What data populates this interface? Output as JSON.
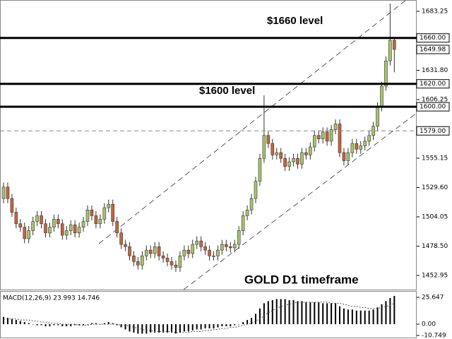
{
  "chart_data": [
    {
      "type": "candlestick",
      "annotations": [
        "$1660 level",
        "$1600 level",
        "GOLD D1 timeframe"
      ],
      "up_color": "#a8c46a",
      "down_color": "#c8643c",
      "open": [
        1520,
        1530,
        1520,
        1508,
        1498,
        1495,
        1485,
        1492,
        1500,
        1505,
        1498,
        1490,
        1495,
        1502,
        1498,
        1488,
        1492,
        1497,
        1490,
        1495,
        1500,
        1510,
        1505,
        1498,
        1502,
        1512,
        1515,
        1500,
        1490,
        1480,
        1478,
        1470,
        1465,
        1462,
        1470,
        1475,
        1472,
        1478,
        1470,
        1468,
        1465,
        1462,
        1460,
        1470,
        1475,
        1472,
        1480,
        1483,
        1478,
        1475,
        1470,
        1470,
        1475,
        1480,
        1478,
        1477,
        1480,
        1492,
        1505,
        1510,
        1520,
        1535,
        1555,
        1575,
        1568,
        1558,
        1560,
        1555,
        1548,
        1552,
        1555,
        1550,
        1560,
        1558,
        1565,
        1575,
        1572,
        1578,
        1570,
        1580,
        1585,
        1560,
        1553,
        1560,
        1568,
        1563,
        1566,
        1570,
        1575,
        1583,
        1600,
        1618,
        1640,
        1658
      ],
      "high": [
        1534,
        1534,
        1524,
        1512,
        1502,
        1499,
        1496,
        1504,
        1509,
        1509,
        1502,
        1499,
        1506,
        1506,
        1502,
        1496,
        1501,
        1501,
        1499,
        1504,
        1514,
        1514,
        1509,
        1506,
        1516,
        1519,
        1519,
        1504,
        1494,
        1484,
        1482,
        1474,
        1469,
        1474,
        1479,
        1479,
        1482,
        1482,
        1474,
        1472,
        1469,
        1466,
        1474,
        1479,
        1479,
        1484,
        1487,
        1487,
        1482,
        1479,
        1474,
        1479,
        1484,
        1484,
        1482,
        1484,
        1496,
        1509,
        1514,
        1524,
        1539,
        1559,
        1610,
        1579,
        1572,
        1564,
        1564,
        1559,
        1556,
        1559,
        1559,
        1564,
        1564,
        1569,
        1579,
        1579,
        1582,
        1582,
        1584,
        1589,
        1589,
        1564,
        1564,
        1572,
        1572,
        1570,
        1574,
        1579,
        1587,
        1604,
        1622,
        1644,
        1690,
        1660
      ],
      "low": [
        1516,
        1516,
        1504,
        1494,
        1491,
        1481,
        1481,
        1488,
        1496,
        1494,
        1486,
        1486,
        1491,
        1494,
        1484,
        1484,
        1488,
        1486,
        1486,
        1491,
        1496,
        1501,
        1494,
        1494,
        1498,
        1508,
        1496,
        1486,
        1476,
        1474,
        1466,
        1461,
        1458,
        1458,
        1466,
        1468,
        1468,
        1466,
        1464,
        1461,
        1458,
        1456,
        1456,
        1466,
        1468,
        1468,
        1476,
        1474,
        1471,
        1466,
        1466,
        1466,
        1471,
        1474,
        1473,
        1473,
        1476,
        1488,
        1501,
        1506,
        1516,
        1531,
        1551,
        1564,
        1554,
        1554,
        1551,
        1544,
        1544,
        1548,
        1546,
        1546,
        1554,
        1554,
        1561,
        1568,
        1568,
        1566,
        1566,
        1576,
        1556,
        1549,
        1549,
        1556,
        1559,
        1559,
        1562,
        1566,
        1571,
        1579,
        1596,
        1614,
        1636,
        1630
      ],
      "close": [
        1530,
        1520,
        1508,
        1498,
        1495,
        1485,
        1492,
        1500,
        1505,
        1498,
        1490,
        1495,
        1502,
        1498,
        1488,
        1492,
        1497,
        1490,
        1495,
        1500,
        1510,
        1505,
        1498,
        1502,
        1512,
        1515,
        1500,
        1490,
        1480,
        1478,
        1470,
        1465,
        1462,
        1470,
        1475,
        1472,
        1478,
        1470,
        1468,
        1465,
        1462,
        1460,
        1470,
        1475,
        1472,
        1480,
        1483,
        1478,
        1475,
        1470,
        1470,
        1475,
        1480,
        1478,
        1477,
        1480,
        1492,
        1505,
        1510,
        1520,
        1535,
        1555,
        1575,
        1568,
        1558,
        1560,
        1555,
        1548,
        1552,
        1555,
        1550,
        1560,
        1558,
        1565,
        1575,
        1572,
        1578,
        1570,
        1580,
        1585,
        1560,
        1553,
        1560,
        1568,
        1563,
        1566,
        1570,
        1575,
        1583,
        1600,
        1618,
        1640,
        1658,
        1650
      ],
      "ylim": [
        1440.6,
        1693.1
      ],
      "yticks": [
        {
          "value": 1683.25,
          "label": "1683.25"
        },
        {
          "value": 1631.8,
          "label": "1631.80"
        },
        {
          "value": 1606.25,
          "label": "1606.25"
        },
        {
          "value": 1555.15,
          "label": "1555.15"
        },
        {
          "value": 1529.6,
          "label": "1529.60"
        },
        {
          "value": 1504.05,
          "label": "1504.05"
        },
        {
          "value": 1478.5,
          "label": "1478.50"
        },
        {
          "value": 1452.95,
          "label": "1452.95"
        }
      ],
      "levels": [
        {
          "value": 1660,
          "label": "1660.00",
          "style": "solid"
        },
        {
          "value": 1620,
          "label": "1620.00",
          "style": "solid"
        },
        {
          "value": 1600,
          "label": "1600.00",
          "style": "solid"
        },
        {
          "value": 1579,
          "label": "1579.00",
          "style": "dashed"
        }
      ],
      "price_label": {
        "value": 1649.98,
        "label": "1649.98"
      }
    },
    {
      "type": "macd",
      "title": "MACD(12,26,9) 23.993 14.746",
      "color": "#000000",
      "values": [
        7,
        6,
        5,
        4,
        3,
        2,
        1,
        0,
        -1,
        -1,
        -2,
        -2,
        -1,
        -1,
        -2,
        -2,
        -2,
        -1,
        -1,
        -1,
        0,
        1,
        1,
        0,
        1,
        2,
        1,
        -1,
        -3,
        -5,
        -7,
        -8,
        -9,
        -9,
        -9,
        -8,
        -8,
        -8,
        -8,
        -8,
        -8,
        -9,
        -8,
        -7,
        -7,
        -6,
        -5,
        -5,
        -4,
        -4,
        -4,
        -3,
        -2,
        -2,
        -2,
        -1,
        0,
        2,
        4,
        6,
        10,
        15,
        20,
        22,
        23,
        24,
        24,
        24,
        23,
        23,
        22,
        22,
        21,
        21,
        21,
        21,
        20,
        20,
        20,
        20,
        17,
        15,
        14,
        14,
        13,
        13,
        13,
        13,
        14,
        16,
        19,
        22,
        25,
        27
      ],
      "signal": [
        5,
        5,
        5,
        5,
        4,
        4,
        4,
        3,
        3,
        2,
        2,
        1,
        1,
        1,
        0,
        0,
        0,
        0,
        -1,
        -1,
        -1,
        0,
        0,
        0,
        0,
        0,
        0,
        0,
        -1,
        -1,
        -2,
        -3,
        -4,
        -5,
        -6,
        -6,
        -7,
        -7,
        -7,
        -7,
        -7,
        -8,
        -8,
        -8,
        -8,
        -7,
        -7,
        -7,
        -6,
        -6,
        -5,
        -5,
        -4,
        -4,
        -3,
        -3,
        -2,
        -1,
        0,
        1,
        3,
        5,
        8,
        11,
        13,
        15,
        17,
        18,
        19,
        20,
        21,
        21,
        21,
        21,
        21,
        21,
        21,
        21,
        20,
        20,
        20,
        19,
        18,
        17,
        17,
        16,
        16,
        15,
        15,
        15,
        16,
        17,
        18,
        20
      ],
      "ylim": [
        -12.8,
        31.05
      ],
      "yticks": [
        {
          "value": 25.647,
          "label": "25.647"
        },
        {
          "value": 0,
          "label": "0.00"
        },
        {
          "value": -10.749,
          "label": "-10.749"
        }
      ]
    }
  ]
}
